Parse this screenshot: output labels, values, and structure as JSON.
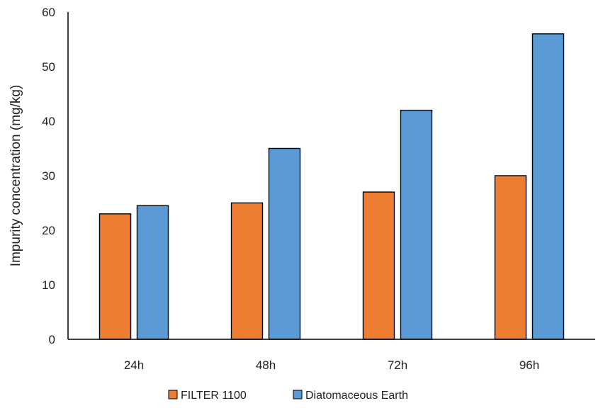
{
  "chart_data": {
    "type": "bar",
    "title": "",
    "xlabel": "",
    "ylabel": "Impurity concentration (mg/kg)",
    "ylim": [
      0,
      60
    ],
    "yticks": [
      0,
      10,
      20,
      30,
      40,
      50,
      60
    ],
    "categories": [
      "24h",
      "48h",
      "72h",
      "96h"
    ],
    "series": [
      {
        "name": "FILTER 1100",
        "color": "#ED7D31",
        "values": [
          23,
          25,
          27,
          30
        ]
      },
      {
        "name": "Diatomaceous Earth",
        "color": "#5B9BD5",
        "values": [
          24.5,
          35,
          42,
          56
        ]
      }
    ],
    "grid": false,
    "legend_position": "bottom"
  }
}
